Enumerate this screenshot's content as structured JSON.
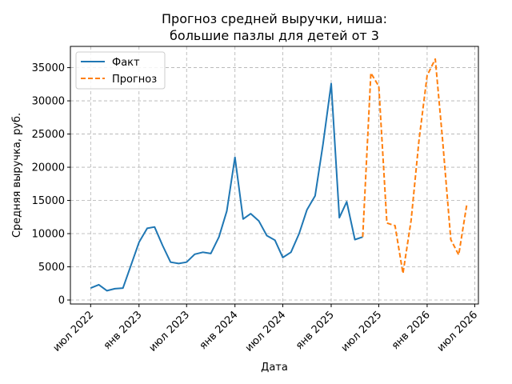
{
  "chart_data": {
    "type": "line",
    "title_lines": [
      "Прогноз средней выручки, ниша:",
      "большие пазлы для детей от 3"
    ],
    "xlabel": "Дата",
    "ylabel": "Средняя выручка, руб.",
    "x_range": [
      "2022-04-15",
      "2026-07-15"
    ],
    "ylim": [
      -600,
      38200
    ],
    "yticks": [
      0,
      5000,
      10000,
      15000,
      20000,
      25000,
      30000,
      35000
    ],
    "xticks": [
      {
        "date": "2022-07-01",
        "label": "июл 2022"
      },
      {
        "date": "2023-01-01",
        "label": "янв 2023"
      },
      {
        "date": "2023-07-01",
        "label": "июл 2023"
      },
      {
        "date": "2024-01-01",
        "label": "янв 2024"
      },
      {
        "date": "2024-07-01",
        "label": "июл 2024"
      },
      {
        "date": "2025-01-01",
        "label": "янв 2025"
      },
      {
        "date": "2025-07-01",
        "label": "июл 2025"
      },
      {
        "date": "2026-01-01",
        "label": "янв 2026"
      },
      {
        "date": "2026-07-01",
        "label": "июл 2026"
      }
    ],
    "grid": true,
    "legend": "top-left",
    "series": [
      {
        "name": "Факт",
        "color": "#1f77b4",
        "style": "solid",
        "x": [
          "2022-07-01",
          "2022-08-01",
          "2022-09-01",
          "2022-10-01",
          "2022-11-01",
          "2022-12-01",
          "2023-01-01",
          "2023-02-01",
          "2023-03-01",
          "2023-04-01",
          "2023-05-01",
          "2023-06-01",
          "2023-07-01",
          "2023-08-01",
          "2023-09-01",
          "2023-10-01",
          "2023-11-01",
          "2023-12-01",
          "2024-01-01",
          "2024-02-01",
          "2024-03-01",
          "2024-04-01",
          "2024-05-01",
          "2024-06-01",
          "2024-07-01",
          "2024-08-01",
          "2024-09-01",
          "2024-10-01",
          "2024-11-01",
          "2024-12-01",
          "2025-01-01",
          "2025-02-01",
          "2025-03-01",
          "2025-04-01",
          "2025-05-01"
        ],
        "y": [
          1800,
          2300,
          1400,
          1700,
          1800,
          5200,
          8700,
          10800,
          11000,
          8200,
          5700,
          5500,
          5700,
          6900,
          7200,
          7000,
          9500,
          13400,
          21500,
          12200,
          13000,
          11900,
          9700,
          9000,
          6400,
          7200,
          10000,
          13600,
          15700,
          23500,
          32600,
          12400,
          14800,
          9100,
          9500
        ]
      },
      {
        "name": "Прогноз",
        "color": "#ff7f0e",
        "style": "dashed",
        "x": [
          "2025-05-01",
          "2025-06-01",
          "2025-07-01",
          "2025-08-01",
          "2025-09-01",
          "2025-10-01",
          "2025-11-01",
          "2025-12-01",
          "2026-01-01",
          "2026-02-01",
          "2026-03-01",
          "2026-04-01",
          "2026-05-01",
          "2026-06-01"
        ],
        "y": [
          9500,
          34200,
          32200,
          11600,
          11200,
          4000,
          12000,
          24000,
          33800,
          36300,
          24000,
          9100,
          6800,
          14400
        ]
      }
    ]
  }
}
